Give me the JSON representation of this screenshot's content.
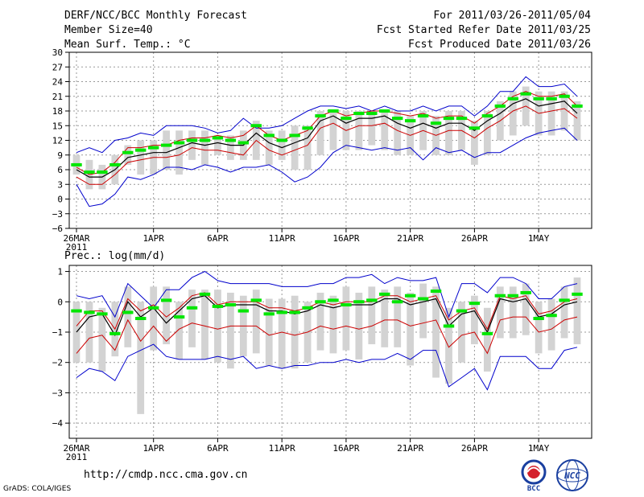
{
  "header": {
    "title": "DERF/NCC/BCC Monthly Forecast",
    "member_size": "Member Size=40",
    "variable": "Mean Surf. Temp.: °C",
    "period": "For 2011/03/26-2011/05/04",
    "started": "Fcst Started Refer Date 2011/03/25",
    "produced": "Fcst Produced Date 2011/03/26"
  },
  "footer": {
    "url": "http://cmdp.ncc.cma.gov.cn",
    "credit": "GrADS: COLA/IGES",
    "logo_left": "BCC",
    "logo_right": "NCC"
  },
  "colors": {
    "grid": "#999999",
    "box": "#d3d3d3",
    "median": "#00e600",
    "mean": "#000000",
    "spread": "#cc0000",
    "envelope": "#0000cc"
  },
  "chart_data": [
    {
      "type": "line",
      "title": "Mean Surf. Temp.: °C",
      "ylim": [
        -6,
        30
      ],
      "yticks": [
        -6,
        -3,
        0,
        3,
        6,
        9,
        12,
        15,
        18,
        21,
        24,
        27,
        30
      ],
      "yticklabels": [
        "−6",
        "−3",
        "0",
        "3",
        "6",
        "9",
        "12",
        "15",
        "18",
        "21",
        "24",
        "27",
        "30"
      ],
      "x_day_range": [
        0,
        39
      ],
      "xticks": [
        {
          "day": 0,
          "label": "26MAR",
          "sub": "2011"
        },
        {
          "day": 6,
          "label": "1APR"
        },
        {
          "day": 11,
          "label": "6APR"
        },
        {
          "day": 16,
          "label": "11APR"
        },
        {
          "day": 21,
          "label": "16APR"
        },
        {
          "day": 26,
          "label": "21APR"
        },
        {
          "day": 31,
          "label": "26APR"
        },
        {
          "day": 36,
          "label": "1MAY"
        }
      ],
      "series": [
        {
          "name": "max",
          "values": [
            3,
            -1.5,
            -1,
            1,
            4.5,
            4,
            5,
            6.5,
            6.5,
            6,
            7,
            6.5,
            5.5,
            6.5,
            6.5,
            7,
            5.5,
            3.5,
            4.5,
            6.5,
            9.5,
            11,
            10.5,
            10,
            10.5,
            10,
            10.5,
            8,
            10.5,
            9.5,
            10,
            8.5,
            9.5,
            9.5,
            11,
            12.5,
            13.5,
            14,
            14.5,
            12
          ]
        },
        {
          "name": "mean",
          "values": [
            6,
            4.5,
            4.5,
            6,
            8.5,
            9,
            9.5,
            9.5,
            10.5,
            11.5,
            11,
            11.5,
            11,
            11,
            13.5,
            11.5,
            10.5,
            11.5,
            12.5,
            16,
            17,
            15.5,
            16.5,
            16.5,
            17,
            15.5,
            14.5,
            15.5,
            14.5,
            15.5,
            15.5,
            14,
            16,
            17.5,
            19.5,
            20.5,
            19,
            19.5,
            20,
            17.5
          ]
        },
        {
          "name": "median",
          "values": [
            7,
            5.5,
            5.5,
            7,
            9.5,
            10,
            10.5,
            11,
            11.5,
            12,
            12,
            12.5,
            12,
            11.5,
            15,
            13,
            12,
            13,
            14.5,
            17,
            18,
            16.5,
            17.5,
            17.5,
            18,
            16.5,
            16,
            17,
            15.5,
            16.5,
            16.5,
            14.5,
            17,
            19,
            20.5,
            21.5,
            20.5,
            20.5,
            21,
            19
          ]
        },
        {
          "name": "upper",
          "values": [
            6.5,
            5,
            5.5,
            7.5,
            10.5,
            10.5,
            11,
            11,
            12,
            12.5,
            12.5,
            13,
            12.5,
            13,
            15,
            13,
            12,
            13,
            14,
            17,
            18,
            17,
            17.5,
            18,
            18,
            17.5,
            17,
            17.5,
            16.5,
            17,
            17,
            15.5,
            17.5,
            19,
            21,
            22,
            21,
            21,
            21.5,
            19
          ]
        },
        {
          "name": "lower",
          "values": [
            4.5,
            3,
            3,
            5,
            7.5,
            8,
            8.5,
            8.5,
            9,
            10.5,
            10,
            10,
            9.5,
            9,
            12,
            10,
            9,
            10,
            11,
            14.5,
            15.5,
            14,
            15,
            15,
            15.5,
            14,
            13,
            14,
            13,
            14,
            14,
            12.5,
            14.5,
            16,
            18,
            19,
            17.5,
            18,
            18.5,
            16.5
          ]
        },
        {
          "name": "min_top",
          "values": [
            9.5,
            10.5,
            9.5,
            12,
            12.5,
            13.5,
            13,
            15,
            15,
            15,
            14.5,
            13.5,
            14,
            16.5,
            14.5,
            14.5,
            15,
            16.5,
            18,
            19,
            19,
            18.5,
            19,
            18,
            19,
            18,
            18,
            19,
            18,
            19,
            19,
            17,
            19,
            22,
            22,
            25,
            23,
            23,
            23.5,
            21
          ]
        },
        {
          "name": "box_low",
          "values": [
            5,
            2,
            2,
            3,
            7,
            5,
            5,
            6,
            5,
            8,
            7,
            9,
            8,
            8,
            8,
            7,
            8,
            6,
            6,
            9,
            10,
            10,
            10,
            11,
            10,
            9,
            9,
            10,
            9,
            9,
            10,
            7,
            9,
            12,
            13,
            15,
            13,
            13,
            14,
            12
          ]
        },
        {
          "name": "box_high",
          "values": [
            9,
            8,
            7,
            9,
            11,
            12,
            12,
            14,
            14,
            14,
            14,
            13,
            13,
            14,
            16,
            14,
            14,
            15,
            15,
            18,
            18,
            18,
            18,
            18,
            18,
            18,
            17,
            18,
            17,
            18,
            18,
            16,
            18,
            20,
            22,
            23,
            22,
            22,
            22,
            20
          ]
        }
      ]
    },
    {
      "type": "line",
      "title": "Prec.: log(mm/d)",
      "ylim": [
        -4.5,
        1.2
      ],
      "yticks": [
        -4,
        -3,
        -2,
        -1,
        0,
        1
      ],
      "yticklabels": [
        "−4",
        "−3",
        "−2",
        "−1",
        "0",
        "1"
      ],
      "x_day_range": [
        0,
        39
      ],
      "xticks": [
        {
          "day": 0,
          "label": "26MAR",
          "sub": "2011"
        },
        {
          "day": 6,
          "label": "1APR"
        },
        {
          "day": 11,
          "label": "6APR"
        },
        {
          "day": 16,
          "label": "11APR"
        },
        {
          "day": 21,
          "label": "16APR"
        },
        {
          "day": 26,
          "label": "21APR"
        },
        {
          "day": 31,
          "label": "26APR"
        },
        {
          "day": 36,
          "label": "1MAY"
        }
      ],
      "series": [
        {
          "name": "max",
          "values": [
            0.2,
            0.1,
            0.2,
            -0.5,
            0.6,
            0.2,
            -0.2,
            0.4,
            0.4,
            0.8,
            1.0,
            0.7,
            0.6,
            0.6,
            0.6,
            0.6,
            0.5,
            0.5,
            0.5,
            0.6,
            0.6,
            0.8,
            0.8,
            0.9,
            0.6,
            0.8,
            0.7,
            0.7,
            0.8,
            -0.5,
            0.6,
            0.6,
            0.3,
            0.8,
            0.8,
            0.6,
            0.1,
            0.1,
            0.5,
            0.6
          ]
        },
        {
          "name": "mean",
          "values": [
            -1.0,
            -0.5,
            -0.4,
            -1.1,
            0.0,
            -0.5,
            -0.2,
            -0.7,
            -0.3,
            0.1,
            0.2,
            -0.2,
            -0.1,
            -0.1,
            -0.1,
            -0.3,
            -0.3,
            -0.4,
            -0.3,
            -0.1,
            -0.2,
            -0.1,
            -0.1,
            -0.1,
            0.1,
            0.1,
            -0.1,
            0.0,
            0.1,
            -0.8,
            -0.4,
            -0.3,
            -1.0,
            0.1,
            0.0,
            0.1,
            -0.5,
            -0.4,
            -0.1,
            0.0
          ]
        },
        {
          "name": "median",
          "values": [
            -0.3,
            -0.35,
            -0.4,
            -1.05,
            -0.35,
            -0.55,
            -0.2,
            0.05,
            -0.5,
            -0.2,
            0.25,
            -0.15,
            -0.1,
            -0.3,
            0.05,
            -0.4,
            -0.35,
            -0.35,
            -0.2,
            0.0,
            0.05,
            -0.1,
            0.0,
            0.05,
            0.25,
            0.0,
            0.2,
            0.1,
            0.35,
            -0.8,
            -0.3,
            -0.05,
            -1.05,
            0.2,
            0.2,
            0.3,
            -0.55,
            -0.45,
            0.05,
            0.25
          ]
        },
        {
          "name": "upper",
          "values": [
            -0.8,
            -0.3,
            -0.3,
            -0.9,
            0.1,
            -0.3,
            -0.1,
            -0.5,
            -0.2,
            0.2,
            0.3,
            -0.1,
            0.0,
            0.0,
            0.0,
            -0.2,
            -0.2,
            -0.3,
            -0.2,
            0.0,
            -0.1,
            0.0,
            0.0,
            0.0,
            0.2,
            0.2,
            0.0,
            0.1,
            0.2,
            -0.6,
            -0.3,
            -0.2,
            -0.9,
            0.2,
            0.1,
            0.2,
            -0.4,
            -0.3,
            0.0,
            0.1
          ]
        },
        {
          "name": "lower",
          "values": [
            -1.7,
            -1.2,
            -1.1,
            -1.6,
            -0.6,
            -1.3,
            -0.8,
            -1.3,
            -0.9,
            -0.7,
            -0.8,
            -0.9,
            -0.8,
            -0.8,
            -0.8,
            -1.1,
            -1.0,
            -1.1,
            -1.0,
            -0.8,
            -0.9,
            -0.8,
            -0.9,
            -0.8,
            -0.6,
            -0.6,
            -0.8,
            -0.7,
            -0.6,
            -1.5,
            -1.1,
            -1.0,
            -1.7,
            -0.6,
            -0.5,
            -0.5,
            -1.0,
            -0.9,
            -0.6,
            -0.5
          ]
        },
        {
          "name": "min_bottom",
          "values": [
            -2.5,
            -2.2,
            -2.3,
            -2.6,
            -1.8,
            -1.6,
            -1.4,
            -1.8,
            -1.9,
            -1.9,
            -1.9,
            -1.8,
            -1.9,
            -1.8,
            -2.2,
            -2.1,
            -2.2,
            -2.1,
            -2.1,
            -2.0,
            -2.0,
            -1.9,
            -2.0,
            -1.9,
            -1.9,
            -1.7,
            -1.9,
            -1.6,
            -1.6,
            -2.8,
            -2.5,
            -2.2,
            -2.9,
            -1.8,
            -1.8,
            -1.8,
            -2.2,
            -2.2,
            -1.6,
            -1.5
          ]
        },
        {
          "name": "box_low",
          "values": [
            -2.0,
            -2.0,
            -2.3,
            -1.8,
            -1.5,
            -3.7,
            -1.6,
            -1.4,
            -1.9,
            -1.5,
            -1.9,
            -2.0,
            -2.2,
            -1.8,
            -1.7,
            -2.1,
            -2.2,
            -2.2,
            -2.0,
            -1.6,
            -1.7,
            -1.6,
            -1.9,
            -1.4,
            -1.5,
            -1.5,
            -2.1,
            -1.2,
            -2.5,
            -2.7,
            -2.0,
            -1.4,
            -2.3,
            -1.2,
            -1.2,
            -1.1,
            -1.7,
            -1.6,
            -1.2,
            -1.4
          ]
        },
        {
          "name": "box_high",
          "values": [
            0.0,
            0.0,
            -0.2,
            0.0,
            0.5,
            0.0,
            0.5,
            0.5,
            0.0,
            0.4,
            0.4,
            0.4,
            0.3,
            0.2,
            0.4,
            0.1,
            0.1,
            0.2,
            0.0,
            0.3,
            0.2,
            0.5,
            0.3,
            0.5,
            0.4,
            0.5,
            0.3,
            0.6,
            0.5,
            -0.2,
            0.0,
            0.2,
            -0.2,
            0.5,
            0.5,
            0.6,
            0.0,
            0.1,
            0.5,
            0.8
          ]
        }
      ]
    }
  ]
}
